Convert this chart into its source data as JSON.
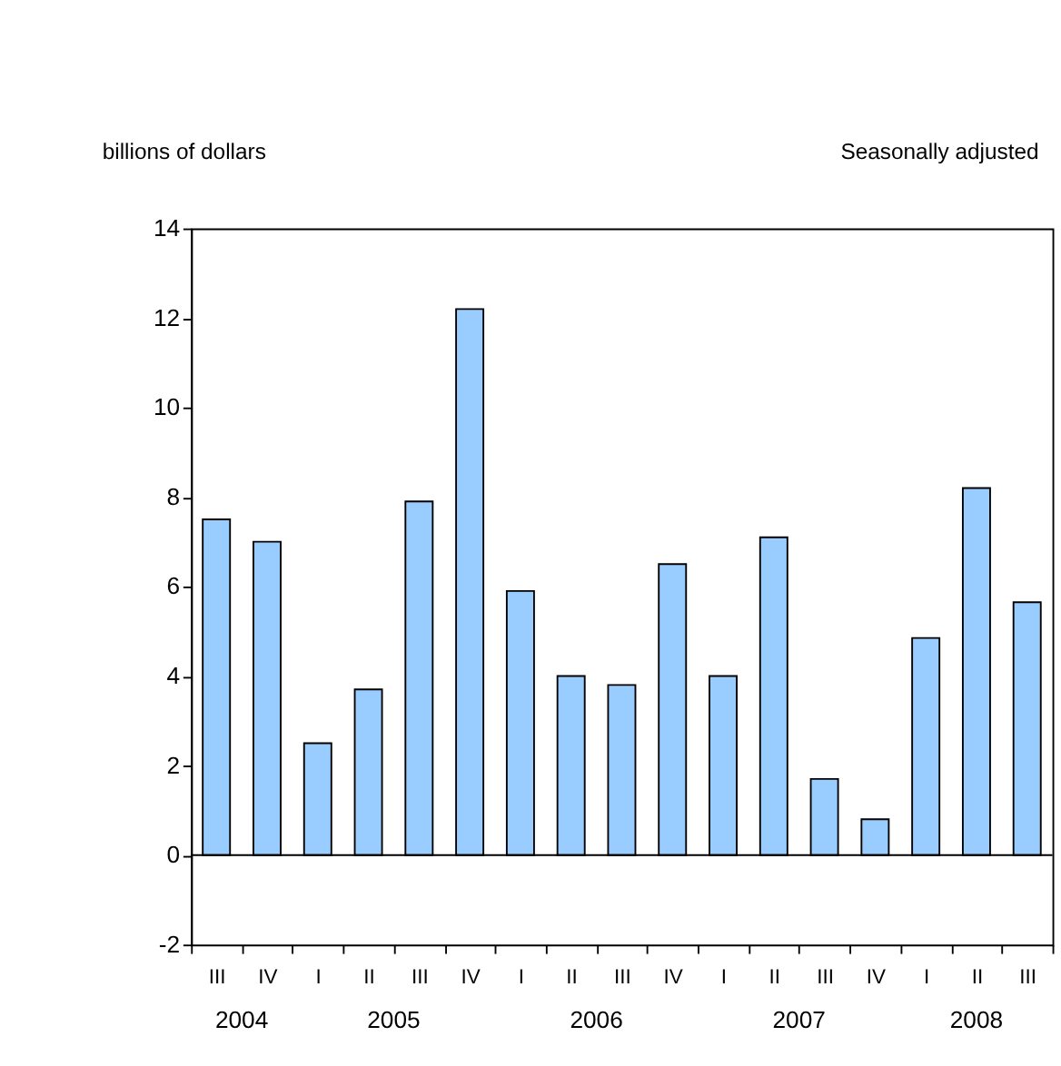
{
  "chart_data": {
    "type": "bar",
    "ylabel": "billions of dollars",
    "categories": [
      "III",
      "IV",
      "I",
      "II",
      "III",
      "IV",
      "I",
      "II",
      "III",
      "IV",
      "I",
      "II",
      "III",
      "IV",
      "I",
      "II",
      "III"
    ],
    "values": [
      7.5,
      7.0,
      2.5,
      3.7,
      7.9,
      12.2,
      5.9,
      4.0,
      3.8,
      6.5,
      4.0,
      7.1,
      1.7,
      0.8,
      4.85,
      8.2,
      5.65
    ],
    "color": "#99ccff",
    "ylim": [
      -2,
      14
    ],
    "yticks": [
      -2,
      0,
      2,
      4,
      6,
      8,
      10,
      12,
      14
    ],
    "annotations": [
      "Seasonally adjusted",
      "2004",
      "2005",
      "2006",
      "2007",
      "2008"
    ]
  }
}
